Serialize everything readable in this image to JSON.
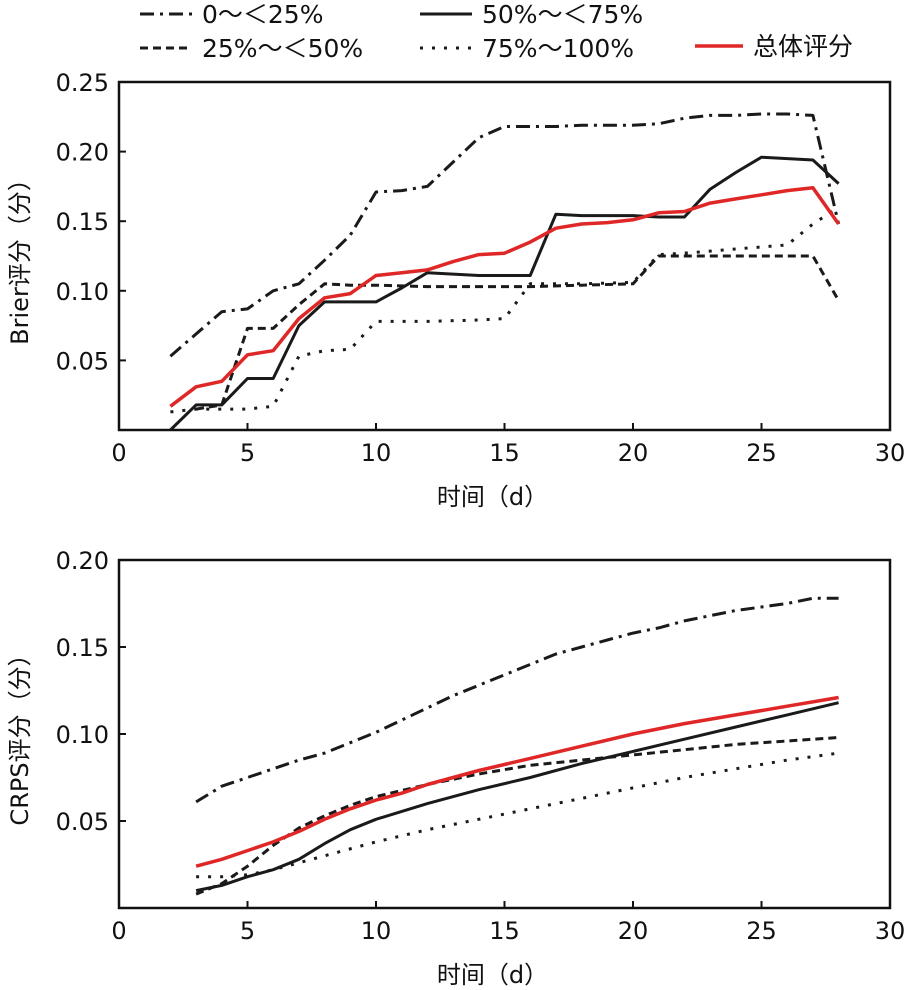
{
  "legend": [
    {
      "key": "g1",
      "label": "0～＜25%"
    },
    {
      "key": "g2",
      "label": "25%～＜50%"
    },
    {
      "key": "g3",
      "label": "50%～＜75%"
    },
    {
      "key": "g4",
      "label": "75%～100%"
    },
    {
      "key": "overall",
      "label": "总体评分"
    }
  ],
  "colors": {
    "black": "#1a1a1a",
    "red": "#e02727"
  },
  "chart_data": [
    {
      "type": "line",
      "ylabel": "Brier评分（分）",
      "xlabel": "时间（d）",
      "xlim": [
        0,
        30
      ],
      "ylim": [
        0,
        0.25
      ],
      "xticks": [
        "0",
        "5",
        "10",
        "15",
        "20",
        "25",
        "30"
      ],
      "yticks": [
        "0.05",
        "0.10",
        "0.15",
        "0.20",
        "0.25"
      ],
      "series": [
        {
          "name": "0～＜25%",
          "style": "dashdot",
          "x": [
            2,
            4,
            5,
            6,
            7,
            8,
            9,
            10,
            11,
            12,
            14,
            15,
            16,
            17,
            18,
            19,
            20,
            21,
            22,
            23,
            24,
            25,
            26,
            27,
            28
          ],
          "y": [
            0.053,
            0.085,
            0.087,
            0.1,
            0.105,
            0.122,
            0.14,
            0.171,
            0.172,
            0.175,
            0.21,
            0.218,
            0.218,
            0.218,
            0.219,
            0.219,
            0.219,
            0.22,
            0.224,
            0.226,
            0.226,
            0.227,
            0.227,
            0.226,
            0.148
          ]
        },
        {
          "name": "25%～＜50%",
          "style": "dashed",
          "x": [
            3,
            4,
            5,
            6,
            7,
            8,
            9,
            10,
            12,
            14,
            16,
            18,
            20,
            21,
            22,
            24,
            26,
            27,
            28
          ],
          "y": [
            0.015,
            0.018,
            0.073,
            0.073,
            0.09,
            0.105,
            0.104,
            0.104,
            0.103,
            0.103,
            0.103,
            0.104,
            0.105,
            0.125,
            0.125,
            0.125,
            0.125,
            0.125,
            0.093
          ]
        },
        {
          "name": "50%～＜75%",
          "style": "solid",
          "x": [
            2,
            3,
            4,
            5,
            6,
            7,
            8,
            9,
            10,
            11,
            12,
            14,
            15,
            16,
            17,
            18,
            20,
            21,
            22,
            23,
            24,
            25,
            27,
            28
          ],
          "y": [
            0.0,
            0.018,
            0.018,
            0.037,
            0.037,
            0.075,
            0.092,
            0.092,
            0.092,
            0.102,
            0.113,
            0.111,
            0.111,
            0.111,
            0.155,
            0.154,
            0.154,
            0.153,
            0.153,
            0.173,
            0.185,
            0.196,
            0.194,
            0.177
          ]
        },
        {
          "name": "75%～100%",
          "style": "dotted",
          "x": [
            2,
            3,
            4,
            5,
            6,
            7,
            8,
            9,
            10,
            11,
            12,
            14,
            15,
            16,
            18,
            20,
            21,
            22,
            24,
            26,
            27,
            28
          ],
          "y": [
            0.013,
            0.015,
            0.015,
            0.015,
            0.017,
            0.053,
            0.057,
            0.058,
            0.078,
            0.078,
            0.078,
            0.079,
            0.08,
            0.105,
            0.105,
            0.106,
            0.126,
            0.127,
            0.13,
            0.133,
            0.148,
            0.16
          ]
        },
        {
          "name": "总体评分",
          "style": "red",
          "x": [
            2,
            3,
            4,
            5,
            6,
            7,
            8,
            9,
            10,
            11,
            12,
            13,
            14,
            15,
            16,
            17,
            18,
            19,
            20,
            21,
            22,
            23,
            24,
            25,
            26,
            27,
            28
          ],
          "y": [
            0.017,
            0.031,
            0.035,
            0.054,
            0.057,
            0.08,
            0.095,
            0.098,
            0.111,
            0.113,
            0.115,
            0.121,
            0.126,
            0.127,
            0.135,
            0.145,
            0.148,
            0.149,
            0.151,
            0.156,
            0.157,
            0.163,
            0.166,
            0.169,
            0.172,
            0.174,
            0.148
          ]
        }
      ]
    },
    {
      "type": "line",
      "ylabel": "CRPS评分（分）",
      "xlabel": "时间（d）",
      "xlim": [
        0,
        30
      ],
      "ylim": [
        0,
        0.2
      ],
      "xticks": [
        "0",
        "5",
        "10",
        "15",
        "20",
        "25",
        "30"
      ],
      "yticks": [
        "0.05",
        "0.10",
        "0.15",
        "0.20"
      ],
      "series": [
        {
          "name": "0～＜25%",
          "style": "dashdot",
          "x": [
            3,
            4,
            5,
            6,
            7,
            8,
            9,
            10,
            11,
            12,
            13,
            14,
            15,
            16,
            17,
            18,
            19,
            20,
            21,
            22,
            23,
            24,
            25,
            26,
            27,
            28
          ],
          "y": [
            0.061,
            0.07,
            0.075,
            0.08,
            0.085,
            0.089,
            0.095,
            0.101,
            0.108,
            0.115,
            0.122,
            0.128,
            0.134,
            0.14,
            0.146,
            0.15,
            0.154,
            0.158,
            0.161,
            0.165,
            0.168,
            0.171,
            0.173,
            0.175,
            0.178,
            0.178
          ]
        },
        {
          "name": "25%～＜50%",
          "style": "dashed",
          "x": [
            3,
            4,
            5,
            6,
            7,
            8,
            9,
            10,
            12,
            14,
            16,
            18,
            20,
            22,
            24,
            26,
            28
          ],
          "y": [
            0.008,
            0.014,
            0.024,
            0.036,
            0.046,
            0.053,
            0.059,
            0.064,
            0.071,
            0.077,
            0.082,
            0.085,
            0.088,
            0.091,
            0.094,
            0.096,
            0.098
          ]
        },
        {
          "name": "50%～＜75%",
          "style": "solid",
          "x": [
            3,
            4,
            5,
            6,
            7,
            8,
            9,
            10,
            12,
            14,
            16,
            18,
            20,
            22,
            24,
            26,
            28
          ],
          "y": [
            0.01,
            0.013,
            0.018,
            0.022,
            0.028,
            0.037,
            0.045,
            0.051,
            0.06,
            0.068,
            0.075,
            0.083,
            0.09,
            0.097,
            0.104,
            0.111,
            0.118
          ]
        },
        {
          "name": "75%～100%",
          "style": "dotted",
          "x": [
            3,
            4,
            5,
            6,
            7,
            8,
            10,
            12,
            14,
            16,
            18,
            20,
            22,
            24,
            26,
            28
          ],
          "y": [
            0.018,
            0.018,
            0.019,
            0.022,
            0.026,
            0.03,
            0.038,
            0.045,
            0.051,
            0.057,
            0.063,
            0.069,
            0.075,
            0.08,
            0.085,
            0.089
          ]
        },
        {
          "name": "总体评分",
          "style": "red",
          "x": [
            3,
            4,
            5,
            6,
            7,
            8,
            9,
            10,
            11,
            12,
            14,
            16,
            18,
            20,
            22,
            24,
            26,
            28
          ],
          "y": [
            0.024,
            0.028,
            0.033,
            0.038,
            0.044,
            0.051,
            0.057,
            0.062,
            0.066,
            0.071,
            0.079,
            0.086,
            0.093,
            0.1,
            0.106,
            0.111,
            0.116,
            0.121
          ]
        }
      ]
    }
  ]
}
